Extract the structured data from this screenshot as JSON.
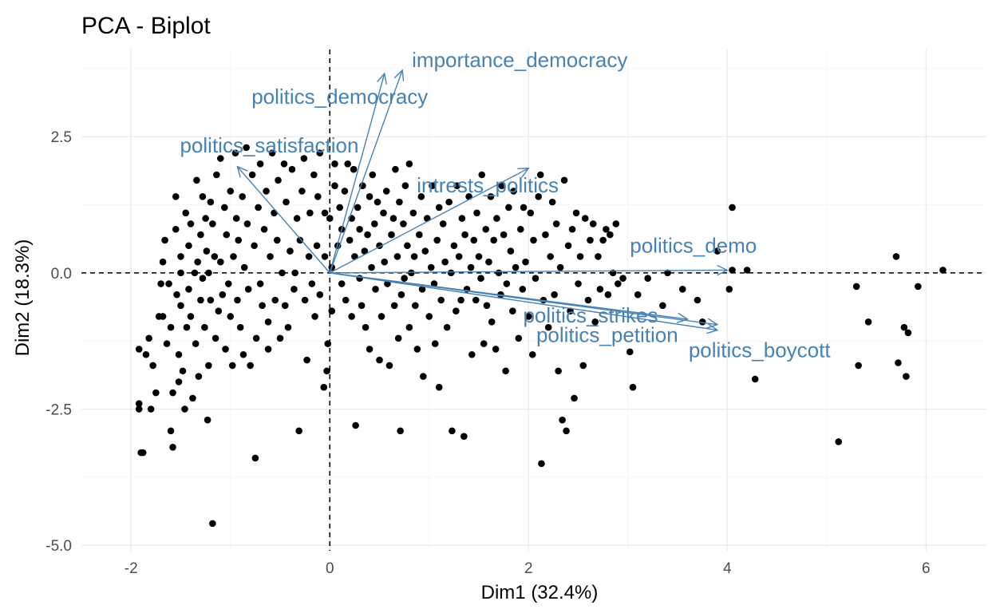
{
  "chart_data": {
    "type": "scatter",
    "title": "PCA - Biplot",
    "xlabel": "Dim1 (32.4%)",
    "ylabel": "Dim2 (18.3%)",
    "xlim": [
      -2.5,
      6.6
    ],
    "ylim": [
      -5.1,
      4.1
    ],
    "x_ticks": [
      -2,
      0,
      2,
      4,
      6
    ],
    "x_tick_labels": [
      "-2",
      "0",
      "2",
      "4",
      "6"
    ],
    "y_ticks": [
      -5.0,
      -2.5,
      0.0,
      2.5
    ],
    "y_tick_labels": [
      "-5.0",
      "-2.5",
      "0.0",
      "2.5"
    ],
    "grid": true,
    "reference_lines": {
      "x": 0,
      "y": 0
    },
    "point_color": "#000000",
    "arrow_color": "#4682b4",
    "loadings": [
      {
        "name": "importance_democracy",
        "x": 0.73,
        "y": 3.72
      },
      {
        "name": "politics_democracy",
        "x": 0.55,
        "y": 3.66
      },
      {
        "name": "politics_satisfaction",
        "x": -0.93,
        "y": 1.95
      },
      {
        "name": "intrests_politics",
        "x": 2.0,
        "y": 1.92
      },
      {
        "name": "politics_demo",
        "x": 4.0,
        "y": 0.05
      },
      {
        "name": "politics_petition",
        "x": 3.9,
        "y": -0.95
      },
      {
        "name": "politics_strikes",
        "x": 3.6,
        "y": -0.85
      },
      {
        "name": "politics_boycott",
        "x": 3.9,
        "y": -1.05
      }
    ],
    "points": [
      [
        -1.92,
        -2.4
      ],
      [
        -1.92,
        -2.5
      ],
      [
        -1.92,
        -1.4
      ],
      [
        -1.9,
        -3.3
      ],
      [
        -1.88,
        -3.3
      ],
      [
        -1.85,
        -1.5
      ],
      [
        -1.82,
        -1.2
      ],
      [
        -1.8,
        -2.5
      ],
      [
        -1.78,
        -1.7
      ],
      [
        -1.75,
        -2.2
      ],
      [
        -1.72,
        -0.8
      ],
      [
        -1.7,
        -0.2
      ],
      [
        -1.68,
        0.2
      ],
      [
        -1.68,
        -0.8
      ],
      [
        -1.66,
        0.6
      ],
      [
        -1.64,
        -1.3
      ],
      [
        -1.62,
        -0.2
      ],
      [
        -1.6,
        -1.0
      ],
      [
        -1.6,
        -2.9
      ],
      [
        -1.58,
        -3.2
      ],
      [
        -1.58,
        -2.2
      ],
      [
        -1.55,
        1.4
      ],
      [
        -1.55,
        0.8
      ],
      [
        -1.54,
        -0.4
      ],
      [
        -1.52,
        -1.5
      ],
      [
        -1.52,
        -2.0
      ],
      [
        -1.5,
        0.3
      ],
      [
        -1.5,
        0.0
      ],
      [
        -1.5,
        -0.6
      ],
      [
        -1.48,
        -1.8
      ],
      [
        -1.46,
        -2.5
      ],
      [
        -1.45,
        1.1
      ],
      [
        -1.44,
        -1.0
      ],
      [
        -1.42,
        0.5
      ],
      [
        -1.42,
        -0.3
      ],
      [
        -1.4,
        -0.8
      ],
      [
        -1.4,
        0.9
      ],
      [
        -1.38,
        -2.3
      ],
      [
        -1.36,
        0.0
      ],
      [
        -1.35,
        -1.3
      ],
      [
        -1.34,
        1.7
      ],
      [
        -1.33,
        0.2
      ],
      [
        -1.32,
        -1.9
      ],
      [
        -1.3,
        0.7
      ],
      [
        -1.3,
        -0.5
      ],
      [
        -1.28,
        1.4
      ],
      [
        -1.28,
        -0.1
      ],
      [
        -1.26,
        -1.0
      ],
      [
        -1.25,
        1.0
      ],
      [
        -1.24,
        0.4
      ],
      [
        -1.23,
        -2.7
      ],
      [
        -1.22,
        0.0
      ],
      [
        -1.22,
        -1.7
      ],
      [
        -1.2,
        -0.5
      ],
      [
        -1.2,
        1.3
      ],
      [
        -1.18,
        0.9
      ],
      [
        -1.18,
        -4.6
      ],
      [
        -1.16,
        0.3
      ],
      [
        -1.15,
        -1.2
      ],
      [
        -1.14,
        1.8
      ],
      [
        -1.12,
        -0.7
      ],
      [
        -1.1,
        2.1
      ],
      [
        -1.1,
        0.2
      ],
      [
        -1.08,
        -0.4
      ],
      [
        -1.06,
        1.2
      ],
      [
        -1.05,
        -1.4
      ],
      [
        -1.04,
        0.7
      ],
      [
        -1.02,
        -0.2
      ],
      [
        -1.0,
        1.5
      ],
      [
        -1.0,
        -0.8
      ],
      [
        -0.98,
        -1.7
      ],
      [
        -0.97,
        0.3
      ],
      [
        -0.95,
        2.2
      ],
      [
        -0.94,
        1.0
      ],
      [
        -0.93,
        -0.5
      ],
      [
        -0.92,
        0.6
      ],
      [
        -0.9,
        -1.0
      ],
      [
        -0.88,
        1.4
      ],
      [
        -0.87,
        -1.5
      ],
      [
        -0.86,
        0.1
      ],
      [
        -0.84,
        2.3
      ],
      [
        -0.83,
        0.9
      ],
      [
        -0.82,
        -0.3
      ],
      [
        -0.8,
        -1.7
      ],
      [
        -0.78,
        1.8
      ],
      [
        -0.76,
        0.5
      ],
      [
        -0.75,
        -3.4
      ],
      [
        -0.74,
        -1.2
      ],
      [
        -0.72,
        1.2
      ],
      [
        -0.7,
        2.0
      ],
      [
        -0.7,
        -0.2
      ],
      [
        -0.68,
        -0.6
      ],
      [
        -0.66,
        0.8
      ],
      [
        -0.64,
        1.5
      ],
      [
        -0.62,
        -0.9
      ],
      [
        -0.62,
        -1.4
      ],
      [
        -0.6,
        0.3
      ],
      [
        -0.58,
        2.2
      ],
      [
        -0.56,
        1.1
      ],
      [
        -0.55,
        -0.5
      ],
      [
        -0.53,
        0.6
      ],
      [
        -0.52,
        1.7
      ],
      [
        -0.5,
        -1.2
      ],
      [
        -0.48,
        0.0
      ],
      [
        -0.46,
        2.0
      ],
      [
        -0.45,
        -0.6
      ],
      [
        -0.44,
        1.3
      ],
      [
        -0.42,
        -1.0
      ],
      [
        -0.4,
        0.4
      ],
      [
        -0.38,
        1.9
      ],
      [
        -0.36,
        -0.3
      ],
      [
        -0.35,
        0.0
      ],
      [
        -0.33,
        1.0
      ],
      [
        -0.31,
        -2.9
      ],
      [
        -0.3,
        0.6
      ],
      [
        -0.28,
        1.5
      ],
      [
        -0.26,
        2.1
      ],
      [
        -0.25,
        -0.5
      ],
      [
        -0.23,
        -1.6
      ],
      [
        -0.21,
        0.3
      ],
      [
        -0.2,
        1.1
      ],
      [
        -0.18,
        -0.2
      ],
      [
        -0.16,
        1.8
      ],
      [
        -0.15,
        -0.8
      ],
      [
        -0.13,
        0.5
      ],
      [
        -0.12,
        1.4
      ],
      [
        -0.1,
        -0.4
      ],
      [
        -0.1,
        2.2
      ],
      [
        -0.06,
        -2.1
      ],
      [
        -0.05,
        1.1
      ],
      [
        -0.05,
        0.3
      ],
      [
        -0.03,
        -1.8
      ],
      [
        -0.02,
        -1.3
      ],
      [
        0.0,
        1.0
      ],
      [
        0.02,
        0.1
      ],
      [
        0.02,
        -0.7
      ],
      [
        0.05,
        1.6
      ],
      [
        0.05,
        2.0
      ],
      [
        0.08,
        0.5
      ],
      [
        0.1,
        1.2
      ],
      [
        0.12,
        0.8
      ],
      [
        0.12,
        -0.2
      ],
      [
        0.15,
        1.5
      ],
      [
        0.16,
        -0.5
      ],
      [
        0.18,
        2.0
      ],
      [
        0.2,
        0.6
      ],
      [
        0.22,
        1.0
      ],
      [
        0.22,
        -0.8
      ],
      [
        0.24,
        1.9
      ],
      [
        0.25,
        0.3
      ],
      [
        0.26,
        -2.8
      ],
      [
        0.28,
        1.2
      ],
      [
        0.3,
        -0.1
      ],
      [
        0.3,
        0.8
      ],
      [
        0.32,
        -0.6
      ],
      [
        0.33,
        1.6
      ],
      [
        0.35,
        0.4
      ],
      [
        0.36,
        -1.0
      ],
      [
        0.38,
        0.7
      ],
      [
        0.4,
        1.4
      ],
      [
        0.4,
        -1.4
      ],
      [
        0.42,
        0.1
      ],
      [
        0.43,
        1.8
      ],
      [
        0.45,
        0.9
      ],
      [
        0.46,
        -0.3
      ],
      [
        0.48,
        1.3
      ],
      [
        0.5,
        0.5
      ],
      [
        0.5,
        -1.6
      ],
      [
        0.52,
        -0.8
      ],
      [
        0.54,
        1.1
      ],
      [
        0.55,
        0.2
      ],
      [
        0.57,
        1.5
      ],
      [
        0.58,
        -0.2
      ],
      [
        0.6,
        -1.7
      ],
      [
        0.62,
        0.7
      ],
      [
        0.64,
        1.0
      ],
      [
        0.65,
        -0.6
      ],
      [
        0.66,
        1.9
      ],
      [
        0.68,
        0.3
      ],
      [
        0.69,
        -1.2
      ],
      [
        0.7,
        1.3
      ],
      [
        0.71,
        -2.9
      ],
      [
        0.72,
        -0.4
      ],
      [
        0.74,
        0.9
      ],
      [
        0.75,
        -0.1
      ],
      [
        0.76,
        1.6
      ],
      [
        0.78,
        0.5
      ],
      [
        0.8,
        -1.0
      ],
      [
        0.8,
        2.0
      ],
      [
        0.82,
        0.0
      ],
      [
        0.84,
        1.1
      ],
      [
        0.85,
        0.3
      ],
      [
        0.86,
        -0.6
      ],
      [
        0.88,
        -1.4
      ],
      [
        0.9,
        0.7
      ],
      [
        0.92,
        1.4
      ],
      [
        0.93,
        -0.3
      ],
      [
        0.94,
        -1.9
      ],
      [
        0.96,
        0.4
      ],
      [
        0.98,
        1.0
      ],
      [
        1.0,
        -0.8
      ],
      [
        1.02,
        0.1
      ],
      [
        1.03,
        1.6
      ],
      [
        1.05,
        -0.2
      ],
      [
        1.06,
        -1.3
      ],
      [
        1.08,
        0.6
      ],
      [
        1.1,
        1.2
      ],
      [
        1.1,
        -2.1
      ],
      [
        1.12,
        -0.5
      ],
      [
        1.14,
        0.9
      ],
      [
        1.16,
        0.2
      ],
      [
        1.18,
        -1.0
      ],
      [
        1.2,
        1.3
      ],
      [
        1.22,
        0.0
      ],
      [
        1.23,
        -2.9
      ],
      [
        1.25,
        0.5
      ],
      [
        1.27,
        -0.7
      ],
      [
        1.28,
        1.6
      ],
      [
        1.3,
        0.3
      ],
      [
        1.32,
        -0.5
      ],
      [
        1.33,
        1.0
      ],
      [
        1.35,
        -3.0
      ],
      [
        1.36,
        0.7
      ],
      [
        1.38,
        -0.3
      ],
      [
        1.4,
        1.4
      ],
      [
        1.42,
        0.1
      ],
      [
        1.43,
        -1.5
      ],
      [
        1.45,
        0.6
      ],
      [
        1.47,
        -0.5
      ],
      [
        1.48,
        1.1
      ],
      [
        1.5,
        0.3
      ],
      [
        1.52,
        -0.1
      ],
      [
        1.53,
        1.8
      ],
      [
        1.55,
        -1.3
      ],
      [
        1.57,
        0.8
      ],
      [
        1.58,
        -0.6
      ],
      [
        1.6,
        0.2
      ],
      [
        1.62,
        1.4
      ],
      [
        1.63,
        -0.9
      ],
      [
        1.65,
        0.6
      ],
      [
        1.67,
        -1.4
      ],
      [
        1.68,
        1.0
      ],
      [
        1.7,
        0.0
      ],
      [
        1.72,
        -0.4
      ],
      [
        1.73,
        1.6
      ],
      [
        1.75,
        0.7
      ],
      [
        1.77,
        -1.8
      ],
      [
        1.78,
        -0.2
      ],
      [
        1.8,
        1.2
      ],
      [
        1.82,
        0.4
      ],
      [
        1.84,
        -0.7
      ],
      [
        1.85,
        1.5
      ],
      [
        1.87,
        0.1
      ],
      [
        1.9,
        -1.2
      ],
      [
        1.92,
        0.8
      ],
      [
        1.94,
        -0.3
      ],
      [
        1.95,
        1.2
      ],
      [
        1.97,
        0.2
      ],
      [
        2.0,
        -0.8
      ],
      [
        2.02,
        1.1
      ],
      [
        2.04,
        -1.5
      ],
      [
        2.05,
        0.6
      ],
      [
        2.07,
        -0.1
      ],
      [
        2.1,
        1.4
      ],
      [
        2.12,
        1.8
      ],
      [
        2.13,
        -3.5
      ],
      [
        2.15,
        -0.5
      ],
      [
        2.17,
        0.7
      ],
      [
        2.2,
        -1.0
      ],
      [
        2.22,
        0.3
      ],
      [
        2.24,
        1.3
      ],
      [
        2.26,
        -0.4
      ],
      [
        2.28,
        0.9
      ],
      [
        2.3,
        -1.8
      ],
      [
        2.32,
        0.1
      ],
      [
        2.34,
        -2.7
      ],
      [
        2.36,
        1.7
      ],
      [
        2.38,
        -2.9
      ],
      [
        2.4,
        0.5
      ],
      [
        2.42,
        -0.7
      ],
      [
        2.44,
        0.8
      ],
      [
        2.46,
        -2.3
      ],
      [
        2.48,
        1.1
      ],
      [
        2.5,
        -0.2
      ],
      [
        2.52,
        0.3
      ],
      [
        2.55,
        -1.7
      ],
      [
        2.57,
        1.0
      ],
      [
        2.6,
        -0.5
      ],
      [
        2.62,
        0.6
      ],
      [
        2.65,
        0.9
      ],
      [
        2.67,
        -0.9
      ],
      [
        2.7,
        0.3
      ],
      [
        2.72,
        -0.3
      ],
      [
        2.75,
        0.6
      ],
      [
        2.78,
        0.8
      ],
      [
        2.8,
        -0.4
      ],
      [
        2.82,
        0.7
      ],
      [
        2.85,
        0.0
      ],
      [
        2.88,
        0.9
      ],
      [
        2.9,
        -0.2
      ],
      [
        2.95,
        -0.1
      ],
      [
        3.02,
        -1.45
      ],
      [
        3.05,
        -2.1
      ],
      [
        3.1,
        -0.4
      ],
      [
        3.2,
        -0.1
      ],
      [
        3.35,
        -0.6
      ],
      [
        3.4,
        0.0
      ],
      [
        3.55,
        -0.3
      ],
      [
        3.7,
        -0.5
      ],
      [
        3.75,
        -0.9
      ],
      [
        3.9,
        0.4
      ],
      [
        4.02,
        -0.3
      ],
      [
        4.05,
        1.2
      ],
      [
        4.05,
        0.05
      ],
      [
        4.2,
        0.05
      ],
      [
        4.28,
        -1.95
      ],
      [
        5.12,
        -3.1
      ],
      [
        5.3,
        -0.25
      ],
      [
        5.32,
        -1.7
      ],
      [
        5.42,
        -0.9
      ],
      [
        5.7,
        0.3
      ],
      [
        5.72,
        -1.65
      ],
      [
        5.78,
        -1.0
      ],
      [
        5.8,
        -1.9
      ],
      [
        5.82,
        -1.1
      ],
      [
        5.92,
        -0.25
      ],
      [
        6.17,
        0.05
      ]
    ]
  }
}
